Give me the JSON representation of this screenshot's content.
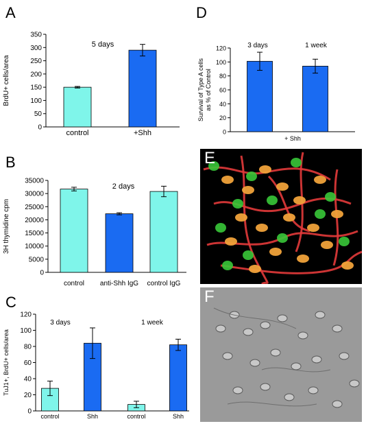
{
  "figure": {
    "panels": [
      {
        "id": "A",
        "label": "A"
      },
      {
        "id": "B",
        "label": "B"
      },
      {
        "id": "C",
        "label": "C"
      },
      {
        "id": "D",
        "label": "D"
      }
    ],
    "photos": [
      {
        "id": "E",
        "label": "E"
      },
      {
        "id": "F",
        "label": "F"
      }
    ],
    "colors": {
      "control_bar": "#7ff5ea",
      "treated_bar": "#1a6bf2",
      "fluor_red": "#e23a3a",
      "fluor_green": "#38c838",
      "dic_gray": "#9a9a9a"
    }
  },
  "chart_data": [
    {
      "panel": "A",
      "type": "bar",
      "title": "5 days",
      "xlabel": "",
      "ylabel": "BrdU+ cells/area",
      "ylim": [
        0,
        350
      ],
      "yticks": [
        0,
        50,
        100,
        150,
        200,
        250,
        300,
        350
      ],
      "categories": [
        "control",
        "+Shh"
      ],
      "values": [
        150,
        290
      ],
      "errors": [
        3,
        22
      ],
      "colors": [
        "#7ff5ea",
        "#1a6bf2"
      ],
      "grid": false
    },
    {
      "panel": "B",
      "type": "bar",
      "title": "2 days",
      "xlabel": "",
      "ylabel": "3H thymidine cpm",
      "ylim": [
        0,
        35000
      ],
      "yticks": [
        0,
        5000,
        10000,
        15000,
        20000,
        25000,
        30000,
        35000
      ],
      "categories": [
        "control",
        "anti-Shh IgG",
        "control  IgG"
      ],
      "values": [
        31700,
        22300,
        30800
      ],
      "errors": [
        700,
        400,
        2000
      ],
      "colors": [
        "#7ff5ea",
        "#1a6bf2",
        "#7ff5ea"
      ],
      "grid": false
    },
    {
      "panel": "C",
      "type": "bar",
      "title": "",
      "annotations": [
        "3 days",
        "1 week"
      ],
      "xlabel": "",
      "ylabel": "TuJ1+, BrdU+ cells/area",
      "ylim": [
        0,
        120
      ],
      "yticks": [
        0,
        20,
        40,
        60,
        80,
        100,
        120
      ],
      "categories": [
        "control",
        "Shh",
        "control",
        "Shh"
      ],
      "values": [
        28,
        84,
        8,
        82
      ],
      "errors": [
        9,
        19,
        4,
        7
      ],
      "colors": [
        "#7ff5ea",
        "#1a6bf2",
        "#7ff5ea",
        "#1a6bf2"
      ],
      "grid": false
    },
    {
      "panel": "D",
      "type": "bar",
      "title": "",
      "annotations": [
        "3 days",
        "1 week"
      ],
      "xlabel": "+ Shh",
      "ylabel": "Survival of Type A cells as % of Control",
      "ylabel_lines": [
        "Survival of Type A cells",
        "as % of Control"
      ],
      "ylim": [
        0,
        120
      ],
      "yticks": [
        0,
        20,
        40,
        60,
        80,
        100,
        120
      ],
      "categories": [
        "3 days",
        "1 week"
      ],
      "values": [
        101,
        94
      ],
      "errors": [
        13,
        10
      ],
      "colors": [
        "#1a6bf2",
        "#1a6bf2"
      ],
      "grid": false
    }
  ]
}
